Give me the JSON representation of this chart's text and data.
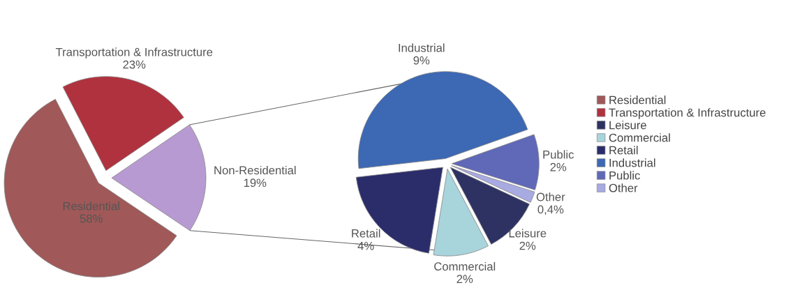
{
  "chart_data": [
    {
      "type": "pie",
      "categories": [
        "Residential",
        "Transportation & Infrastructure",
        "Non-Residential"
      ],
      "values": [
        58,
        23,
        19
      ],
      "value_labels": [
        "58%",
        "23%",
        "19%"
      ],
      "colors": [
        "#a05858",
        "#b0323e",
        "#b89ad2"
      ],
      "legend": "right"
    },
    {
      "type": "pie",
      "categories": [
        "Leisure",
        "Commercial",
        "Retail",
        "Industrial",
        "Public",
        "Other"
      ],
      "values": [
        2,
        2,
        4,
        9,
        2,
        0.4
      ],
      "value_labels": [
        "2%",
        "2%",
        "4%",
        "9%",
        "2%",
        "0,4%"
      ],
      "colors": [
        "#2e3262",
        "#a8d4dc",
        "#2b2d6a",
        "#3c68b4",
        "#6068b8",
        "#a8aae2"
      ],
      "legend": "right"
    }
  ]
}
